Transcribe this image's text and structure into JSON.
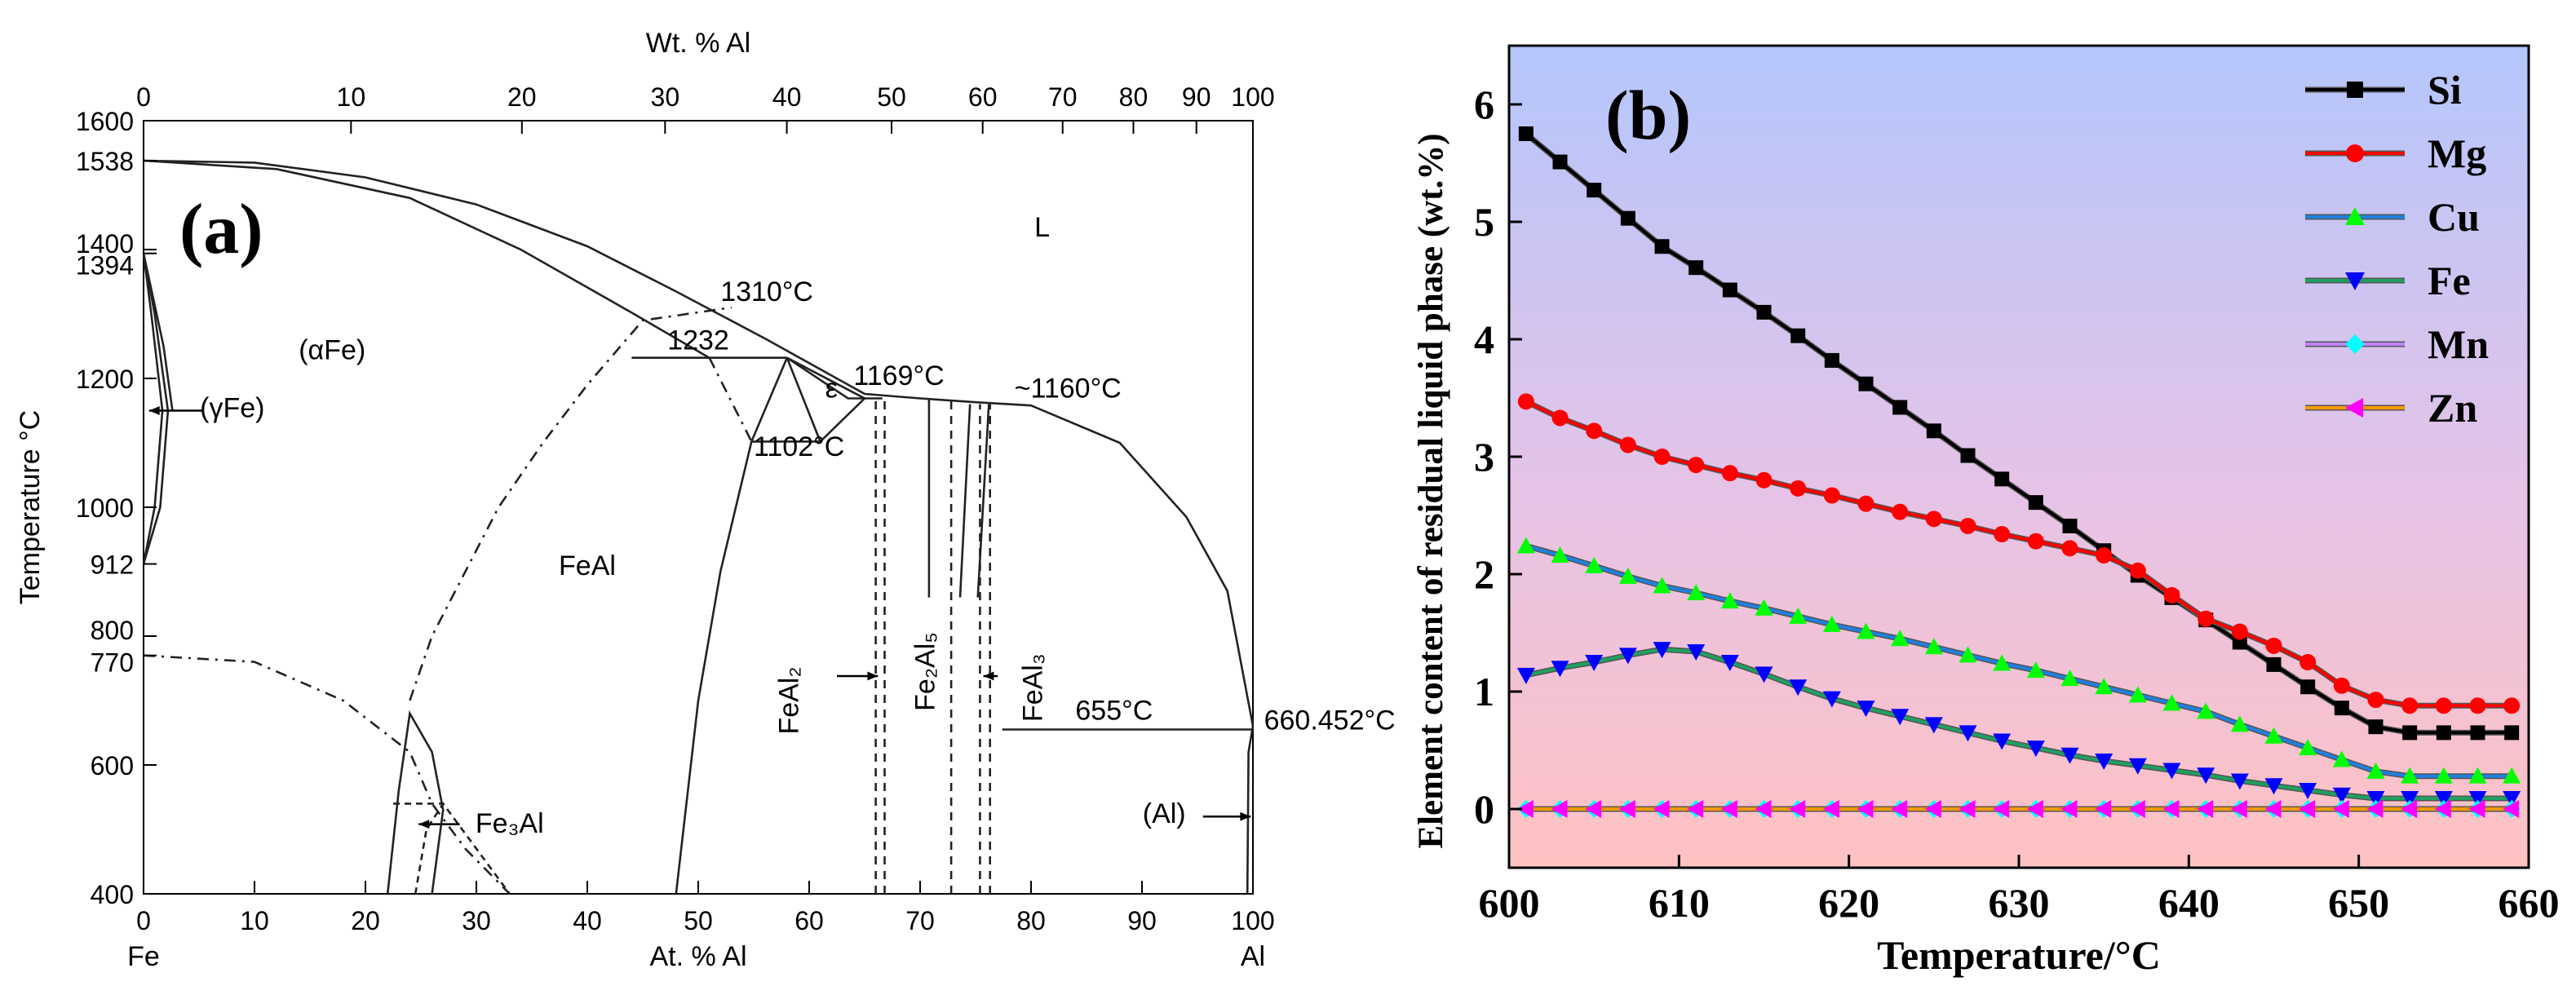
{
  "chart_data": [
    {
      "id": "a",
      "type": "phase-diagram",
      "panel_label": "(a)",
      "top_axis": {
        "label": "Wt. % Al",
        "ticks": [
          0,
          10,
          20,
          30,
          40,
          50,
          60,
          70,
          80,
          90,
          100
        ]
      },
      "bottom_axis": {
        "label": "At. % Al",
        "ticks": [
          0,
          10,
          20,
          30,
          40,
          50,
          60,
          70,
          80,
          90,
          100
        ],
        "left_end_label": "Fe",
        "right_end_label": "Al",
        "range": [
          0,
          100
        ]
      },
      "y_axis": {
        "label": "Temperature °C",
        "ticks": [
          400,
          600,
          770,
          800,
          912,
          1000,
          1200,
          1394,
          1400,
          1538,
          1600
        ],
        "range": [
          400,
          1600
        ]
      },
      "region_labels": [
        {
          "text": "L",
          "at": [
            81,
            1600
          ],
          "t": 1420
        },
        {
          "text": "(αFe)",
          "at": [
            17,
            1200
          ],
          "t": 1230
        },
        {
          "text": "(γFe)",
          "at": [
            8,
            1200
          ],
          "t": 1140
        },
        {
          "text": "FeAl",
          "at": [
            40,
            1200
          ],
          "t": 895
        },
        {
          "text": "ε",
          "at": [
            62,
            1200
          ],
          "t": 1170
        },
        {
          "text": "Fe₃Al",
          "at": [
            33,
            1200
          ],
          "t": 495
        },
        {
          "text": "(Al)",
          "at": [
            92,
            1200
          ],
          "t": 510
        }
      ],
      "vertical_labels": [
        {
          "text": "FeAl₂",
          "x": 59,
          "t": 700
        },
        {
          "text": "Fe₂Al₅",
          "x": 71.3,
          "t": 745
        },
        {
          "text": "FeAl₃",
          "x": 81,
          "t": 720
        }
      ],
      "annotations": [
        "1310°C",
        "1232",
        "1169°C",
        "~1160°C",
        "1102°C",
        "655°C",
        "660.452°C"
      ]
    },
    {
      "id": "b",
      "type": "line",
      "panel_label": "(b)",
      "xlabel": "Temperature/°C",
      "ylabel": "Element content of residual liquid phase (wt.%)",
      "xlim": [
        600,
        660
      ],
      "ylim": [
        -0.5,
        6.5
      ],
      "xticks": [
        600,
        610,
        620,
        630,
        640,
        650,
        660
      ],
      "yticks": [
        0,
        1,
        2,
        3,
        4,
        5,
        6
      ],
      "x": [
        601,
        603,
        605,
        607,
        609,
        611,
        613,
        615,
        617,
        619,
        621,
        623,
        625,
        627,
        629,
        631,
        633,
        635,
        637,
        639,
        641,
        643,
        645,
        647,
        649,
        651,
        653,
        655,
        657,
        659
      ],
      "series": [
        {
          "name": "Si",
          "color": "#000000",
          "marker": "square",
          "values": [
            5.75,
            5.51,
            5.27,
            5.03,
            4.79,
            4.61,
            4.42,
            4.23,
            4.03,
            3.82,
            3.62,
            3.42,
            3.22,
            3.01,
            2.81,
            2.61,
            2.41,
            2.2,
            1.99,
            1.8,
            1.61,
            1.42,
            1.23,
            1.04,
            0.86,
            0.7,
            0.65,
            0.65,
            0.65,
            0.65
          ]
        },
        {
          "name": "Mg",
          "color": "#ff0000",
          "marker": "circle",
          "values": [
            3.47,
            3.33,
            3.22,
            3.1,
            3.0,
            2.93,
            2.86,
            2.8,
            2.73,
            2.67,
            2.6,
            2.53,
            2.47,
            2.41,
            2.34,
            2.28,
            2.22,
            2.16,
            2.03,
            1.82,
            1.62,
            1.51,
            1.39,
            1.25,
            1.05,
            0.93,
            0.88,
            0.88,
            0.88,
            0.88
          ]
        },
        {
          "name": "Cu",
          "color": "#00ff00",
          "line": "#2080e0",
          "marker": "triangle-up",
          "values": [
            2.24,
            2.16,
            2.07,
            1.98,
            1.9,
            1.84,
            1.77,
            1.71,
            1.64,
            1.57,
            1.51,
            1.45,
            1.38,
            1.31,
            1.24,
            1.18,
            1.11,
            1.04,
            0.97,
            0.9,
            0.83,
            0.72,
            0.62,
            0.52,
            0.42,
            0.32,
            0.28,
            0.28,
            0.28,
            0.28
          ]
        },
        {
          "name": "Fe",
          "color": "#0000ff",
          "line": "#20a060",
          "marker": "triangle-down",
          "values": [
            1.14,
            1.2,
            1.25,
            1.31,
            1.36,
            1.34,
            1.25,
            1.15,
            1.04,
            0.94,
            0.86,
            0.79,
            0.72,
            0.65,
            0.58,
            0.52,
            0.46,
            0.41,
            0.37,
            0.33,
            0.29,
            0.24,
            0.2,
            0.16,
            0.12,
            0.09,
            0.09,
            0.09,
            0.09,
            0.09
          ]
        },
        {
          "name": "Mn",
          "color": "#00ffff",
          "line": "#c080ff",
          "marker": "diamond",
          "values": [
            0,
            0,
            0,
            0,
            0,
            0,
            0,
            0,
            0,
            0,
            0,
            0,
            0,
            0,
            0,
            0,
            0,
            0,
            0,
            0,
            0,
            0,
            0,
            0,
            0,
            0,
            0,
            0,
            0,
            0
          ]
        },
        {
          "name": "Zn",
          "color": "#ff00ff",
          "line": "#ff9900",
          "marker": "triangle-left",
          "values": [
            0,
            0,
            0,
            0,
            0,
            0,
            0,
            0,
            0,
            0,
            0,
            0,
            0,
            0,
            0,
            0,
            0,
            0,
            0,
            0,
            0,
            0,
            0,
            0,
            0,
            0,
            0,
            0,
            0,
            0
          ]
        }
      ],
      "background_gradient": [
        "#b4c6fc",
        "#ffc2c2"
      ]
    }
  ]
}
